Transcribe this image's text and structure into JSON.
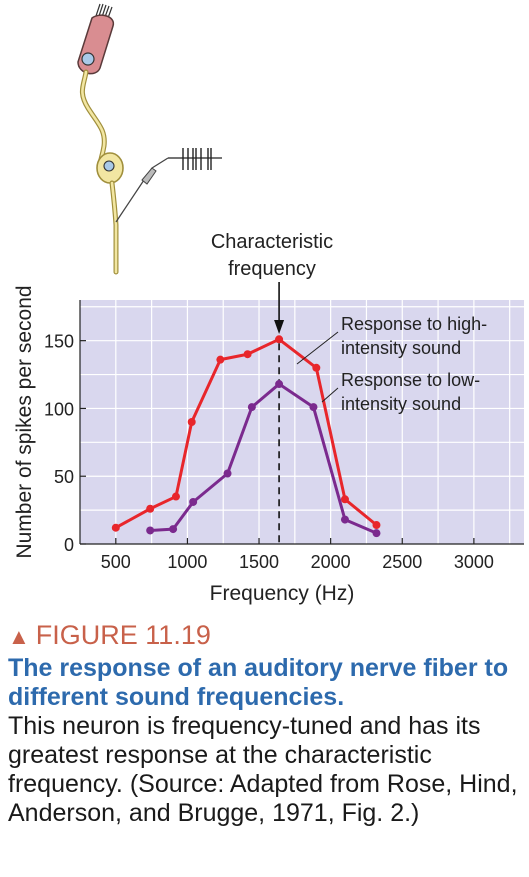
{
  "chart_data": {
    "type": "line",
    "xlabel": "Frequency (Hz)",
    "ylabel": "Number of spikes per second",
    "xlim": [
      250,
      3350
    ],
    "ylim": [
      0,
      180
    ],
    "x_ticks": [
      500,
      1000,
      1500,
      2000,
      2500,
      3000
    ],
    "y_ticks": [
      0,
      50,
      100,
      150
    ],
    "grid": true,
    "series": [
      {
        "name": "Response to high-intensity sound",
        "color": "#e8262b",
        "x": [
          500,
          740,
          920,
          1030,
          1230,
          1420,
          1640,
          1900,
          2100,
          2320
        ],
        "y": [
          12,
          26,
          35,
          90,
          136,
          140,
          151,
          130,
          33,
          14
        ]
      },
      {
        "name": "Response to low-intensity sound",
        "color": "#7b2a8e",
        "x": [
          740,
          900,
          1040,
          1280,
          1450,
          1640,
          1880,
          2100,
          2320
        ],
        "y": [
          10,
          11,
          31,
          52,
          101,
          118,
          101,
          18,
          8
        ]
      }
    ],
    "annotations": {
      "characteristic_line_x": 1640,
      "characteristic_label": [
        "Characteristic",
        "frequency"
      ],
      "legend_high": [
        "Response to high-",
        "intensity sound"
      ],
      "legend_low": [
        "Response to low-",
        "intensity sound"
      ]
    }
  },
  "caption": {
    "figure_label": "FIGURE 11.19",
    "title": "The response of an auditory nerve fiber to different sound frequencies.",
    "body": "This neuron is frequency-tuned and has its greatest response at the characteristic frequency. (Source: Adapted from Rose, Hind, Anderson, and Brugge, 1971, Fig. 2.)"
  },
  "colors": {
    "plot_background": "#d9d7ee",
    "gridline": "#ffffff",
    "high_series": "#e8262b",
    "low_series": "#7b2a8e",
    "caption_label": "#c8614a",
    "caption_title": "#2d6aad"
  },
  "icons": [
    "hair-cell-illustration",
    "nerve-fiber-illustration",
    "recording-electrode-illustration",
    "spike-train-illustration"
  ]
}
